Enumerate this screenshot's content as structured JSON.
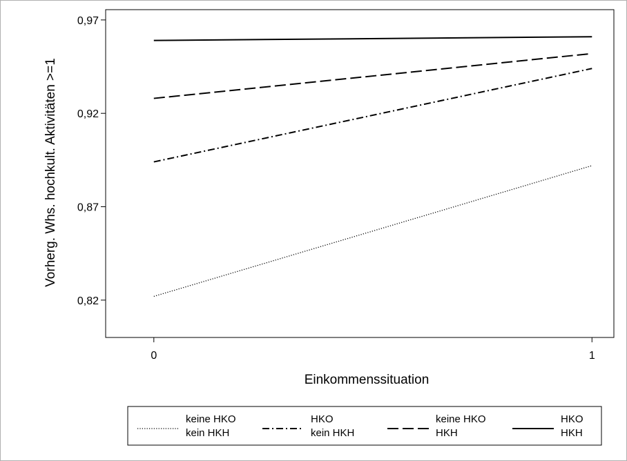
{
  "chart_data": {
    "type": "line",
    "title": "",
    "xlabel": "Einkommenssituation",
    "ylabel": "Vorherg. Whs. hochkult. Aktivitäten >=1",
    "x": [
      0,
      1
    ],
    "x_ticks": [
      "0",
      "1"
    ],
    "y_ticks": [
      {
        "value": 0.82,
        "label": "0,82"
      },
      {
        "value": 0.87,
        "label": "0,87"
      },
      {
        "value": 0.92,
        "label": "0,92"
      },
      {
        "value": 0.97,
        "label": "0,97"
      }
    ],
    "xlim": [
      -0.11,
      1.05
    ],
    "ylim": [
      0.8,
      0.9755
    ],
    "grid": false,
    "legend_position": "bottom",
    "series": [
      {
        "name1": "keine HKO",
        "name2": "kein HKH",
        "style": "dotted",
        "values": [
          0.822,
          0.892
        ]
      },
      {
        "name1": "HKO",
        "name2": "kein HKH",
        "style": "dashdot",
        "values": [
          0.894,
          0.944
        ]
      },
      {
        "name1": "keine HKO",
        "name2": "HKH",
        "style": "dashed",
        "values": [
          0.928,
          0.952
        ]
      },
      {
        "name1": "HKO",
        "name2": "HKH",
        "style": "solid",
        "values": [
          0.959,
          0.961
        ]
      }
    ]
  }
}
